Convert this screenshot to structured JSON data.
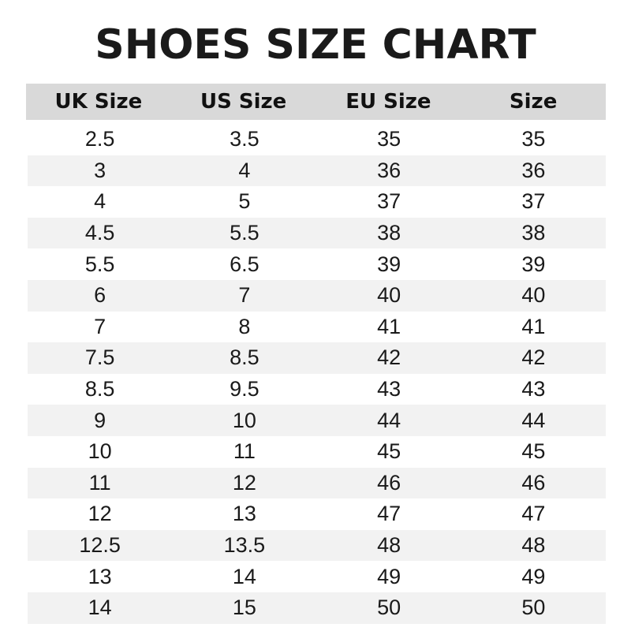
{
  "title": "SHOES SIZE CHART",
  "colors": {
    "header_bg": "#d9d9d9",
    "stripe_bg": "#f2f2f2",
    "text": "#111111"
  },
  "chart_data": {
    "type": "table",
    "title": "SHOES SIZE CHART",
    "columns": [
      "UK Size",
      "US Size",
      "EU Size",
      "Size"
    ],
    "rows": [
      [
        "2.5",
        "3.5",
        "35",
        "35"
      ],
      [
        "3",
        "4",
        "36",
        "36"
      ],
      [
        "4",
        "5",
        "37",
        "37"
      ],
      [
        "4.5",
        "5.5",
        "38",
        "38"
      ],
      [
        "5.5",
        "6.5",
        "39",
        "39"
      ],
      [
        "6",
        "7",
        "40",
        "40"
      ],
      [
        "7",
        "8",
        "41",
        "41"
      ],
      [
        "7.5",
        "8.5",
        "42",
        "42"
      ],
      [
        "8.5",
        "9.5",
        "43",
        "43"
      ],
      [
        "9",
        "10",
        "44",
        "44"
      ],
      [
        "10",
        "11",
        "45",
        "45"
      ],
      [
        "11",
        "12",
        "46",
        "46"
      ],
      [
        "12",
        "13",
        "47",
        "47"
      ],
      [
        "12.5",
        "13.5",
        "48",
        "48"
      ],
      [
        "13",
        "14",
        "49",
        "49"
      ],
      [
        "14",
        "15",
        "50",
        "50"
      ]
    ]
  }
}
